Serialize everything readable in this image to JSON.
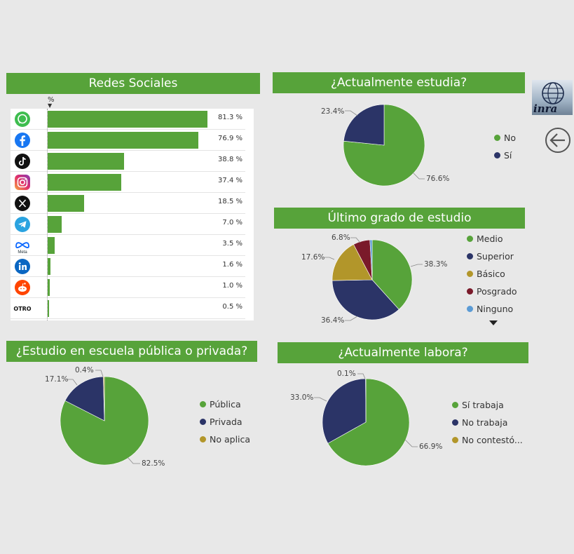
{
  "colors": {
    "green": "#57a33a",
    "navy": "#2b3467",
    "mustard": "#b2962a",
    "maroon": "#7a1a2a",
    "lightblue": "#5b9bd5"
  },
  "social": {
    "title": "Redes Sociales",
    "sort_header": "%",
    "chart_data": {
      "type": "bar",
      "orientation": "horizontal",
      "categories": [
        "WhatsApp",
        "Facebook",
        "TikTok",
        "Instagram",
        "X",
        "Telegram",
        "Meta",
        "LinkedIn",
        "Reddit",
        "OTRO"
      ],
      "values": [
        81.3,
        76.9,
        38.8,
        37.4,
        18.5,
        7.0,
        3.5,
        1.6,
        1.0,
        0.5
      ],
      "labels": [
        "81.3 %",
        "76.9 %",
        "38.8 %",
        "37.4 %",
        "18.5 %",
        "7.0 %",
        "3.5 %",
        "1.6 %",
        "1.0 %",
        "0.5 %"
      ],
      "icons": [
        "whatsapp-icon",
        "facebook-icon",
        "tiktok-icon",
        "instagram-icon",
        "x-icon",
        "telegram-icon",
        "meta-icon",
        "linkedin-icon",
        "reddit-icon",
        "otro-icon"
      ]
    },
    "otro_text": "OTRO",
    "meta_text": "Meta"
  },
  "studying": {
    "title": "¿Actualmente estudia?",
    "chart_data": {
      "type": "pie",
      "categories": [
        "No",
        "Sí"
      ],
      "values": [
        76.6,
        23.4
      ],
      "labels": [
        "76.6%",
        "23.4%"
      ],
      "colors": [
        "#57a33a",
        "#2b3467"
      ],
      "legend": [
        "No",
        "Sí"
      ]
    }
  },
  "degree": {
    "title": "Último grado de estudio",
    "chart_data": {
      "type": "pie",
      "categories": [
        "Medio",
        "Superior",
        "Básico",
        "Posgrado",
        "Ninguno"
      ],
      "values": [
        38.3,
        36.4,
        17.6,
        6.8,
        0.9
      ],
      "labels": [
        "38.3%",
        "36.4%",
        "17.6%",
        "6.8%"
      ],
      "colors": [
        "#57a33a",
        "#2b3467",
        "#b2962a",
        "#7a1a2a",
        "#5b9bd5"
      ],
      "legend": [
        "Medio",
        "Superior",
        "Básico",
        "Posgrado",
        "Ninguno"
      ]
    }
  },
  "school": {
    "title": "¿Estudio en escuela pública o privada?",
    "chart_data": {
      "type": "pie",
      "categories": [
        "Pública",
        "Privada",
        "No aplica"
      ],
      "values": [
        82.5,
        17.1,
        0.4
      ],
      "labels": [
        "82.5%",
        "17.1%",
        "0.4%"
      ],
      "colors": [
        "#57a33a",
        "#2b3467",
        "#b2962a"
      ],
      "legend": [
        "Pública",
        "Privada",
        "No aplica"
      ]
    }
  },
  "work": {
    "title": "¿Actualmente labora?",
    "chart_data": {
      "type": "pie",
      "categories": [
        "Sí trabaja",
        "No trabaja",
        "No contestó..."
      ],
      "values": [
        66.9,
        33.0,
        0.1
      ],
      "labels": [
        "66.9%",
        "33.0%",
        "0.1%"
      ],
      "colors": [
        "#57a33a",
        "#2b3467",
        "#b2962a"
      ],
      "legend": [
        "Sí trabaja",
        "No trabaja",
        "No contestó..."
      ]
    }
  },
  "logo": {
    "text": "inra"
  }
}
